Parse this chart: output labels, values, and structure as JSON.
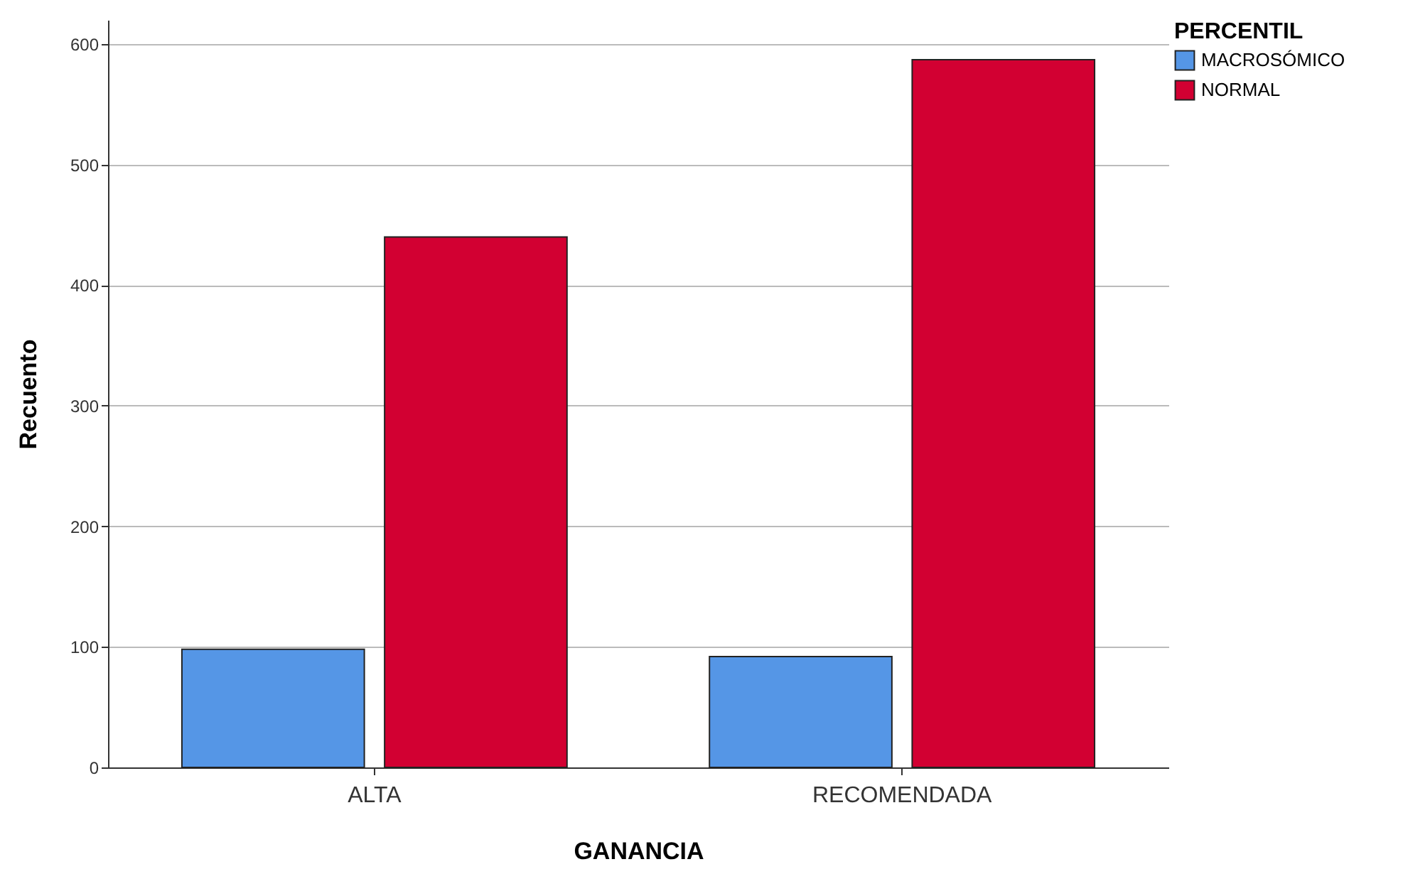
{
  "chart_data": {
    "type": "bar",
    "xlabel": "GANANCIA",
    "ylabel": "Recuento",
    "legend_title": "PERCENTIL",
    "categories": [
      "ALTA",
      "RECOMENDADA"
    ],
    "series": [
      {
        "name": "MACROSÓMICO",
        "color": "#5596e6",
        "values": [
          98,
          92
        ]
      },
      {
        "name": "NORMAL",
        "color": "#d20032",
        "values": [
          440,
          587
        ]
      }
    ],
    "ylim": [
      0,
      620
    ],
    "yticks": [
      0,
      100,
      200,
      300,
      400,
      500,
      600
    ],
    "grid": "y",
    "legend": "top right"
  }
}
